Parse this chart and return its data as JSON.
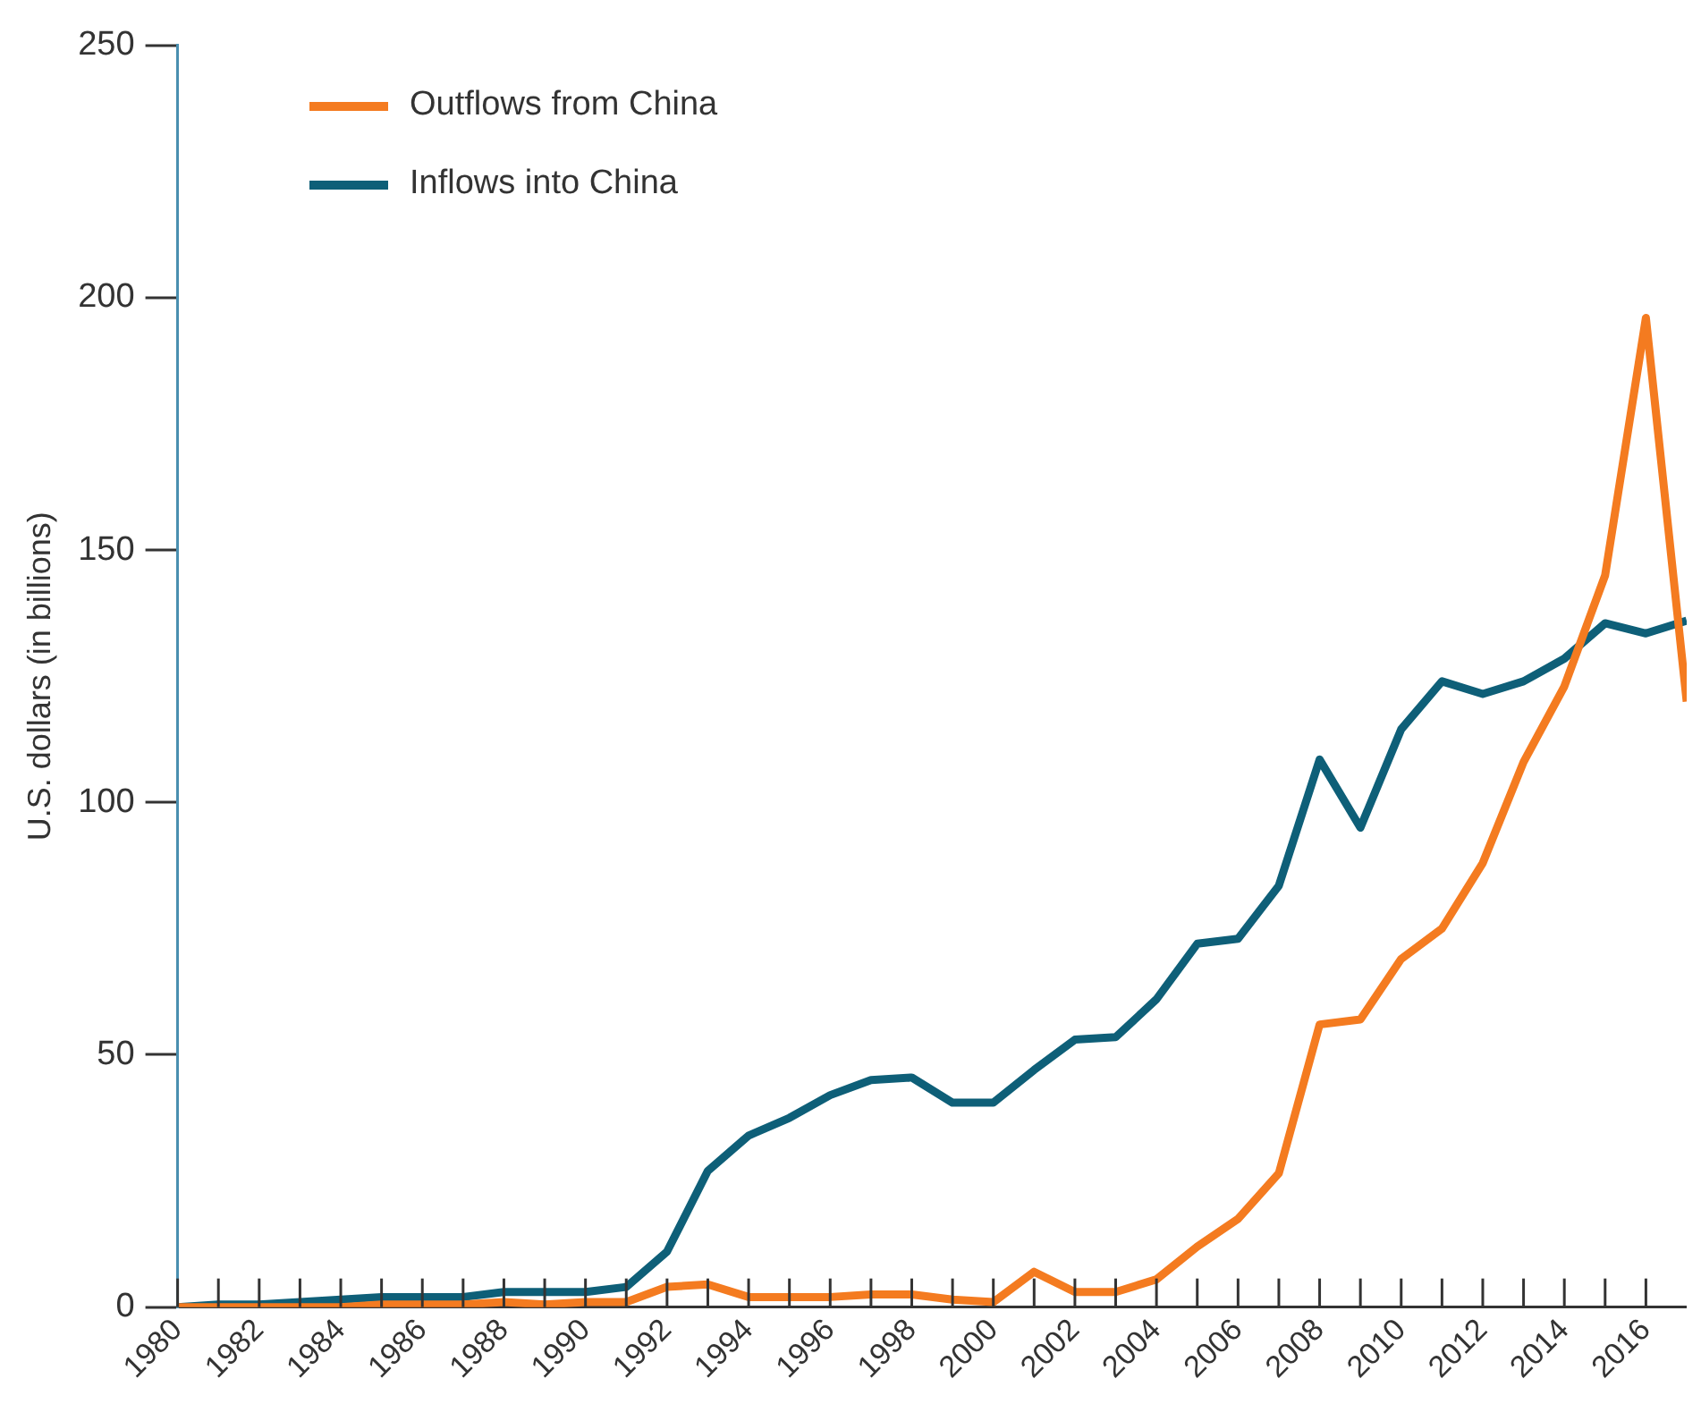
{
  "chart_data": {
    "type": "line",
    "ylabel": "U.S. dollars (in billions)",
    "x": [
      1980,
      1981,
      1982,
      1983,
      1984,
      1985,
      1986,
      1987,
      1988,
      1989,
      1990,
      1991,
      1992,
      1993,
      1994,
      1995,
      1996,
      1997,
      1998,
      1999,
      2000,
      2001,
      2002,
      2003,
      2004,
      2005,
      2006,
      2007,
      2008,
      2009,
      2010,
      2011,
      2012,
      2013,
      2014,
      2015,
      2016,
      2017
    ],
    "series": [
      {
        "name": "Outflows from China",
        "color": "#f47b20",
        "values": [
          0,
          0,
          0,
          0,
          0,
          0.5,
          0.5,
          0.5,
          1,
          0.5,
          1,
          1,
          4,
          4.5,
          2,
          2,
          2,
          2.5,
          2.5,
          1.5,
          1,
          7,
          3,
          3,
          5.5,
          12,
          17.5,
          26.5,
          56,
          57,
          69,
          75,
          88,
          108,
          123,
          145,
          196,
          120
        ]
      },
      {
        "name": "Inflows into China",
        "color": "#0e5f78",
        "values": [
          0,
          0.5,
          0.5,
          1,
          1.5,
          2,
          2,
          2,
          3,
          3,
          3,
          4,
          11,
          27,
          34,
          37.5,
          42,
          45,
          45.5,
          40.5,
          40.5,
          47,
          53,
          53.5,
          61,
          72,
          73,
          83.5,
          108.5,
          95,
          114.5,
          124,
          121.5,
          124,
          128.5,
          135.5,
          133.5,
          136
        ]
      }
    ],
    "xlim": [
      1980,
      2017
    ],
    "xticks": [
      1980,
      {
        "value": 1981,
        "label": null
      },
      1982,
      {
        "value": 1983,
        "label": null
      },
      1984,
      {
        "value": 1985,
        "label": null
      },
      1986,
      {
        "value": 1987,
        "label": null
      },
      1988,
      {
        "value": 1989,
        "label": null
      },
      1990,
      {
        "value": 1991,
        "label": null
      },
      1992,
      {
        "value": 1993,
        "label": null
      },
      1994,
      {
        "value": 1995,
        "label": null
      },
      1996,
      {
        "value": 1997,
        "label": null
      },
      1998,
      {
        "value": 1999,
        "label": null
      },
      2000,
      {
        "value": 2001,
        "label": null
      },
      2002,
      {
        "value": 2003,
        "label": null
      },
      2004,
      {
        "value": 2005,
        "label": null
      },
      2006,
      {
        "value": 2007,
        "label": null
      },
      2008,
      {
        "value": 2009,
        "label": null
      },
      2010,
      {
        "value": 2011,
        "label": null
      },
      2012,
      {
        "value": 2013,
        "label": null
      },
      2014,
      {
        "value": 2015,
        "label": null
      },
      2016
    ],
    "ylim": [
      0,
      250
    ],
    "yticks": [
      0,
      50,
      100,
      150,
      200,
      250
    ],
    "grid": false,
    "legend": "top left",
    "marker": "none",
    "line_style": "solid"
  }
}
